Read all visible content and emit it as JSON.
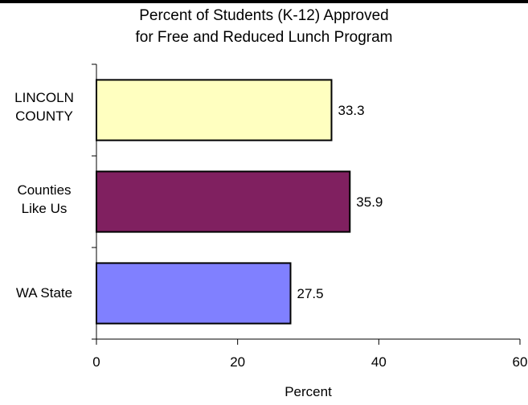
{
  "chart_data": {
    "type": "bar",
    "orientation": "horizontal",
    "title": [
      "Percent of Students (K-12) Approved",
      "for Free and Reduced Lunch Program"
    ],
    "categories": [
      [
        "LINCOLN",
        "COUNTY"
      ],
      [
        "Counties",
        "Like Us"
      ],
      [
        "WA State"
      ]
    ],
    "values": [
      33.3,
      35.9,
      27.5
    ],
    "value_labels": [
      "33.3",
      "35.9",
      "27.5"
    ],
    "bar_colors": [
      "#ffffc0",
      "#802060",
      "#8080ff"
    ],
    "xlabel": "Percent",
    "ylabel": "",
    "xlim": [
      0,
      60
    ],
    "x_ticks": [
      0,
      20,
      40,
      60
    ],
    "x_tick_labels": [
      "0",
      "20",
      "40",
      "60"
    ],
    "grid": false,
    "legend": "none"
  }
}
